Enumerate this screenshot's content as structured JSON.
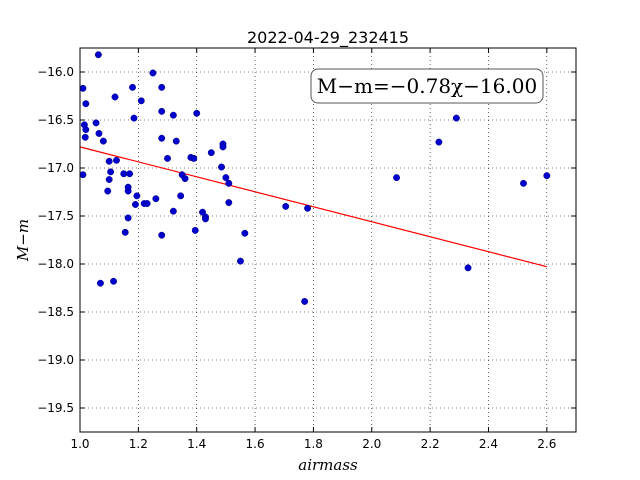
{
  "chart_data": {
    "type": "scatter",
    "title": "2022-04-29_232415",
    "xlabel": "airmass",
    "ylabel": "M−m",
    "xlim": [
      1.0,
      2.7
    ],
    "ylim": [
      -19.75,
      -15.75
    ],
    "y_inverted": true,
    "x_ticks": [
      1.0,
      1.2,
      1.4,
      1.6,
      1.8,
      2.0,
      2.2,
      2.4,
      2.6
    ],
    "x_tick_labels": [
      "1.0",
      "1.2",
      "1.4",
      "1.6",
      "1.8",
      "2.0",
      "2.2",
      "2.4",
      "2.6"
    ],
    "y_ticks": [
      -16.0,
      -16.5,
      -17.0,
      -17.5,
      -18.0,
      -18.5,
      -19.0,
      -19.5
    ],
    "y_tick_labels": [
      "−16.0",
      "−16.5",
      "−17.0",
      "−17.5",
      "−18.0",
      "−18.5",
      "−19.0",
      "−19.5"
    ],
    "grid": true,
    "annotation": "M−m=−0.78χ−16.00",
    "fit": {
      "slope": -0.78,
      "intercept": -16.0,
      "x_range": [
        1.0,
        2.6
      ],
      "color": "#ff0000"
    },
    "point_color": "#0000cc",
    "points": [
      [
        1.063,
        -15.82
      ],
      [
        1.01,
        -16.17
      ],
      [
        1.02,
        -16.33
      ],
      [
        1.015,
        -16.55
      ],
      [
        1.02,
        -16.6
      ],
      [
        1.018,
        -16.68
      ],
      [
        1.055,
        -16.53
      ],
      [
        1.065,
        -16.64
      ],
      [
        1.08,
        -16.72
      ],
      [
        1.01,
        -17.07
      ],
      [
        1.1,
        -16.93
      ],
      [
        1.125,
        -16.92
      ],
      [
        1.12,
        -16.26
      ],
      [
        1.18,
        -16.16
      ],
      [
        1.185,
        -16.48
      ],
      [
        1.21,
        -16.3
      ],
      [
        1.25,
        -16.01
      ],
      [
        1.28,
        -16.16
      ],
      [
        1.28,
        -16.41
      ],
      [
        1.32,
        -16.45
      ],
      [
        1.4,
        -16.43
      ],
      [
        1.28,
        -16.69
      ],
      [
        1.33,
        -16.72
      ],
      [
        1.3,
        -16.9
      ],
      [
        1.38,
        -16.89
      ],
      [
        1.39,
        -16.9
      ],
      [
        1.45,
        -16.84
      ],
      [
        1.49,
        -16.75
      ],
      [
        1.49,
        -16.78
      ],
      [
        1.485,
        -16.99
      ],
      [
        1.5,
        -17.1
      ],
      [
        1.51,
        -17.16
      ],
      [
        1.35,
        -17.07
      ],
      [
        1.36,
        -17.11
      ],
      [
        1.105,
        -17.04
      ],
      [
        1.1,
        -17.12
      ],
      [
        1.095,
        -17.24
      ],
      [
        1.15,
        -17.06
      ],
      [
        1.17,
        -17.06
      ],
      [
        1.165,
        -17.2
      ],
      [
        1.165,
        -17.24
      ],
      [
        1.195,
        -17.29
      ],
      [
        1.19,
        -17.38
      ],
      [
        1.22,
        -17.37
      ],
      [
        1.23,
        -17.37
      ],
      [
        1.26,
        -17.32
      ],
      [
        1.345,
        -17.29
      ],
      [
        1.32,
        -17.45
      ],
      [
        1.42,
        -17.46
      ],
      [
        1.43,
        -17.51
      ],
      [
        1.43,
        -17.53
      ],
      [
        1.51,
        -17.36
      ],
      [
        1.165,
        -17.52
      ],
      [
        1.155,
        -17.67
      ],
      [
        1.28,
        -17.7
      ],
      [
        1.395,
        -17.65
      ],
      [
        1.565,
        -17.68
      ],
      [
        1.55,
        -17.97
      ],
      [
        1.07,
        -18.2
      ],
      [
        1.115,
        -18.18
      ],
      [
        1.705,
        -17.4
      ],
      [
        1.78,
        -17.42
      ],
      [
        1.77,
        -18.39
      ],
      [
        2.085,
        -17.1
      ],
      [
        2.23,
        -16.73
      ],
      [
        2.29,
        -16.48
      ],
      [
        2.33,
        -18.04
      ],
      [
        2.52,
        -17.16
      ],
      [
        2.6,
        -17.08
      ]
    ]
  }
}
